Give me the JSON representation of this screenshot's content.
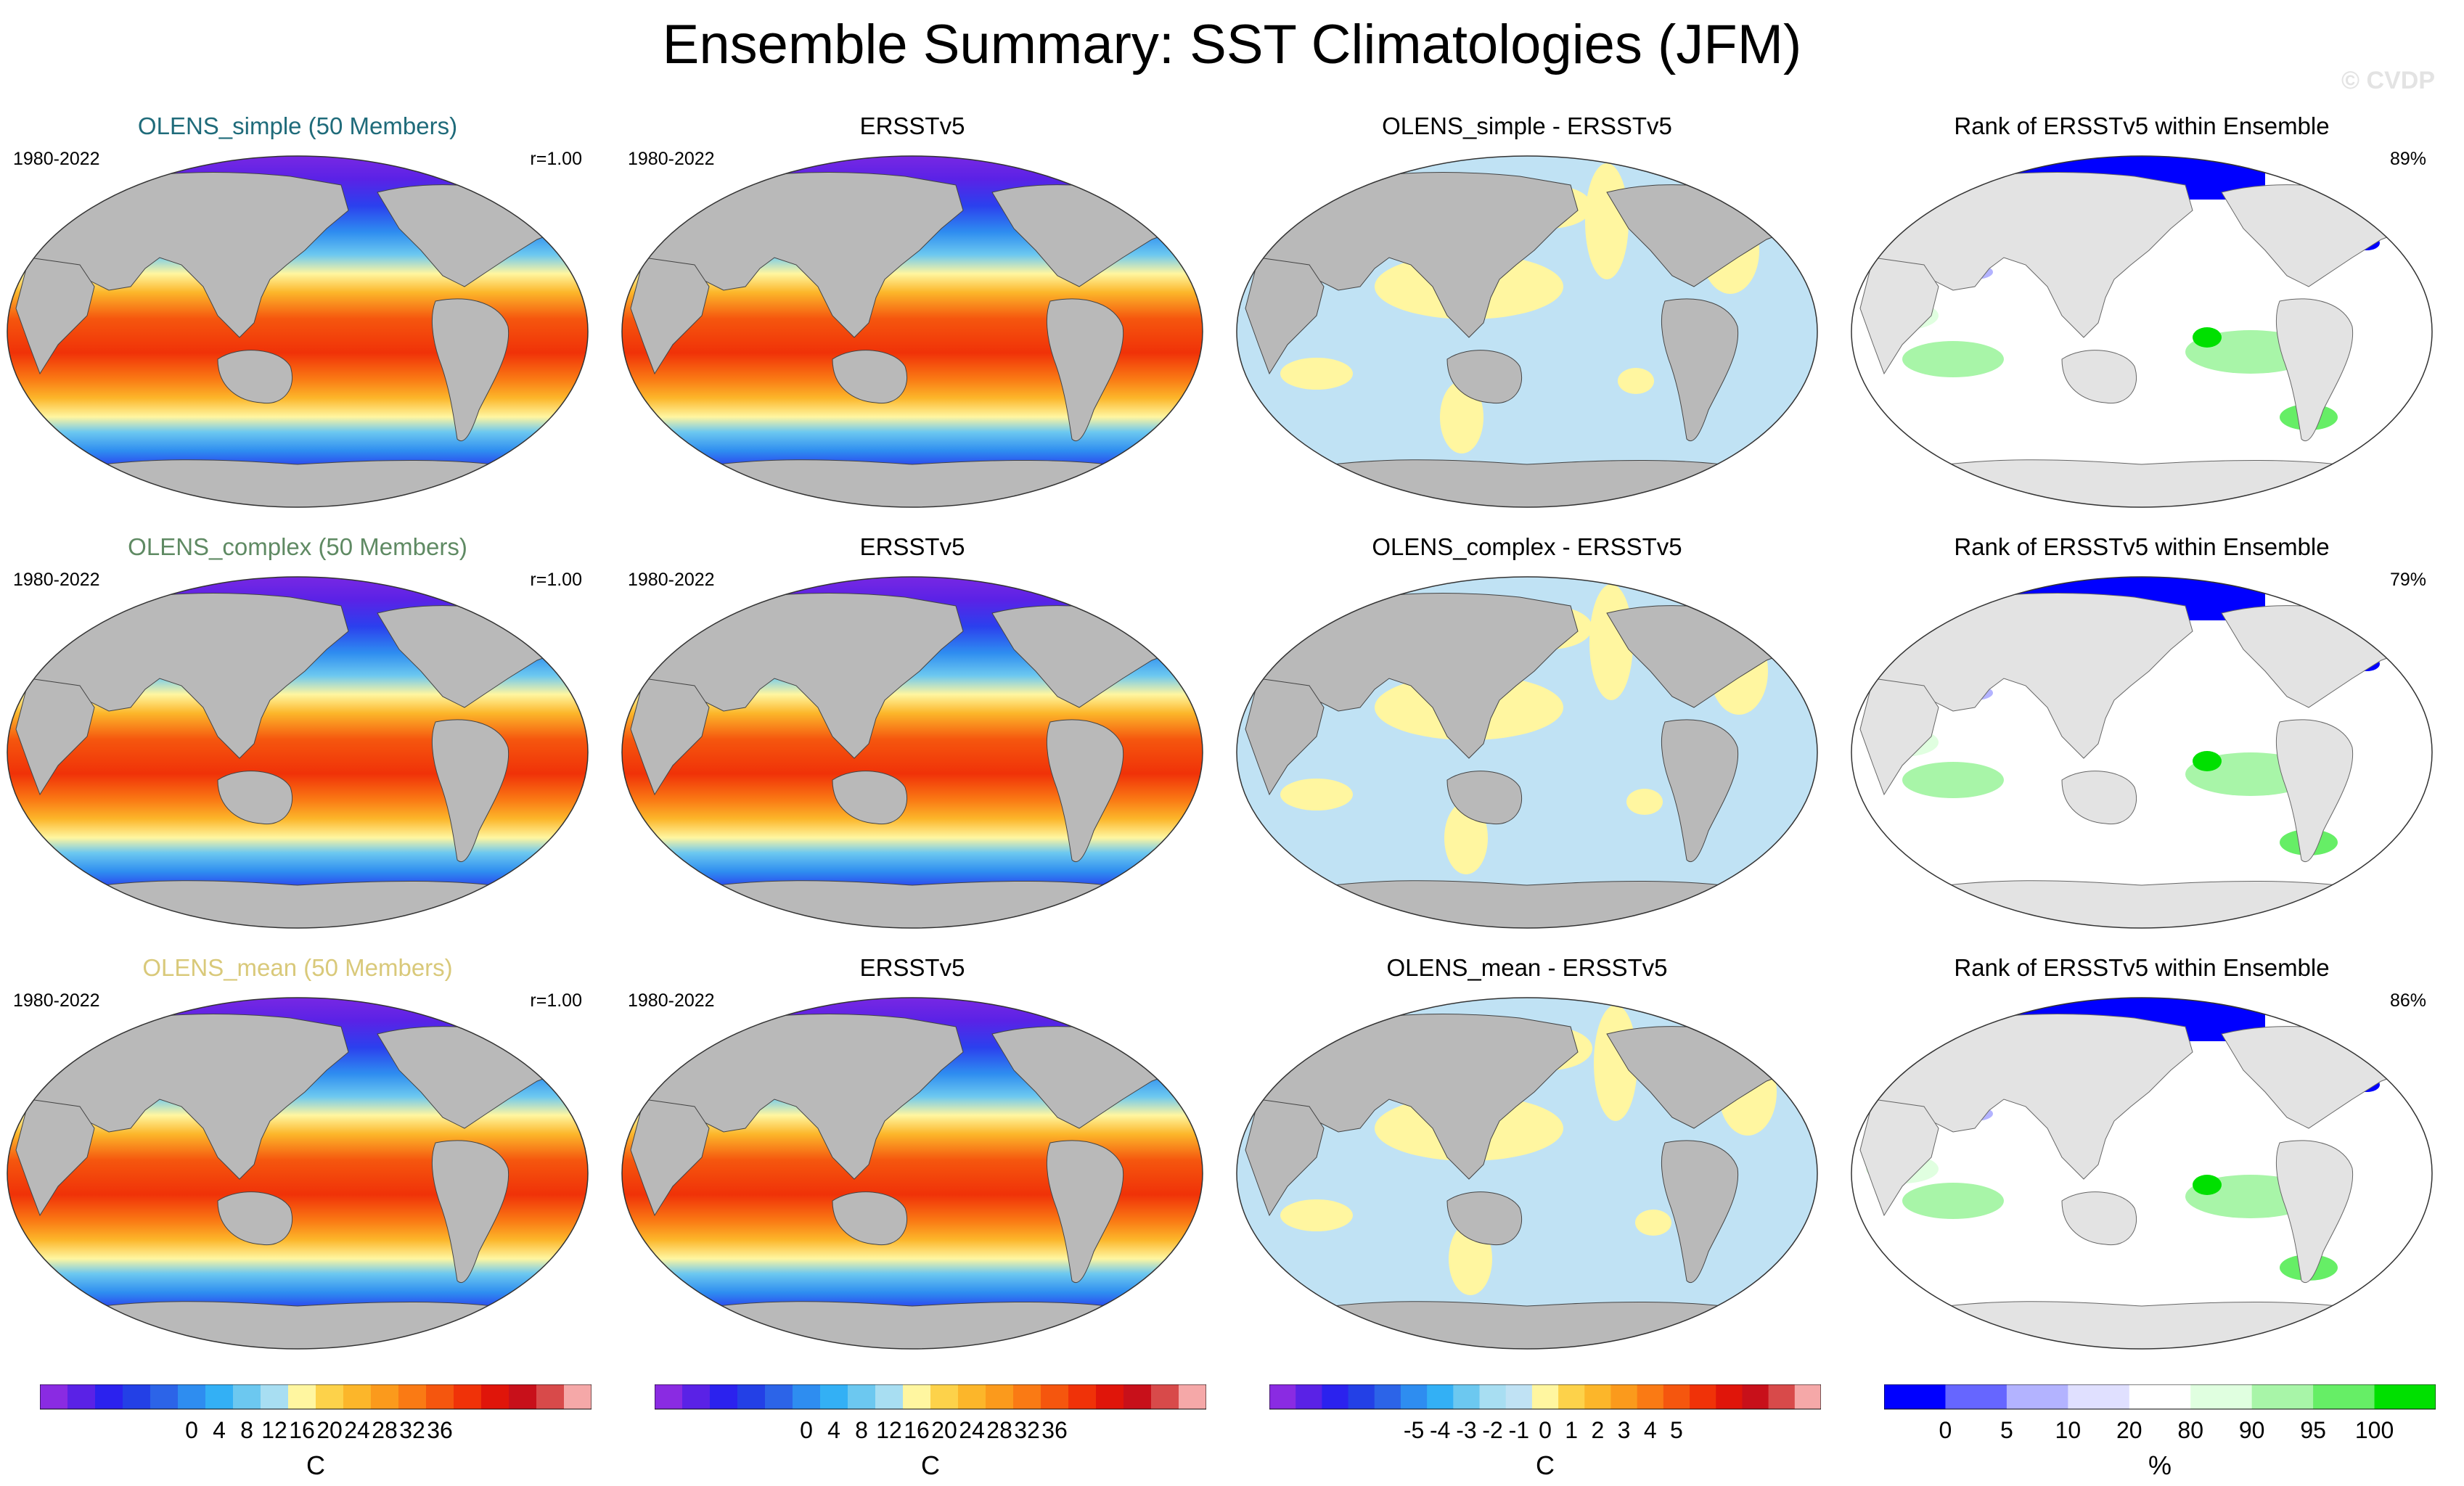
{
  "title": "Ensemble Summary: SST Climatologies (JFM)",
  "copyright": "© CVDP",
  "rows": [
    {
      "model": {
        "title": "OLENS_simple (50 Members)",
        "title_color": "#1f6b7a",
        "period": "1980-2022",
        "corr": "r=1.00"
      },
      "obs": {
        "title": "ERSSTv5",
        "period": "1980-2022"
      },
      "diff": {
        "title": "OLENS_simple - ERSSTv5"
      },
      "rank": {
        "title": "Rank of ERSSTv5 within Ensemble",
        "pct": "89%"
      }
    },
    {
      "model": {
        "title": "OLENS_complex (50 Members)",
        "title_color": "#5f8a63",
        "period": "1980-2022",
        "corr": "r=1.00"
      },
      "obs": {
        "title": "ERSSTv5",
        "period": "1980-2022"
      },
      "diff": {
        "title": "OLENS_complex - ERSSTv5"
      },
      "rank": {
        "title": "Rank of ERSSTv5 within Ensemble",
        "pct": "79%"
      }
    },
    {
      "model": {
        "title": "OLENS_mean (50 Members)",
        "title_color": "#d9c97a",
        "period": "1980-2022",
        "corr": "r=1.00"
      },
      "obs": {
        "title": "ERSSTv5",
        "period": "1980-2022"
      },
      "diff": {
        "title": "OLENS_mean - ERSSTv5"
      },
      "rank": {
        "title": "Rank of ERSSTv5 within Ensemble",
        "pct": "86%"
      }
    }
  ],
  "colorbars": [
    {
      "unit": "C",
      "labels": [
        "0",
        "4",
        "8",
        "12",
        "16",
        "20",
        "24",
        "28",
        "32",
        "36"
      ],
      "colors": [
        "#8a2be2",
        "#5a22e6",
        "#2b22ee",
        "#2340e6",
        "#2c64e8",
        "#2e8df0",
        "#33b0f5",
        "#6cc8f0",
        "#a8def2",
        "#fff6a0",
        "#fdd24a",
        "#fcb62a",
        "#fb9a1c",
        "#fa7a14",
        "#f5560e",
        "#f03208",
        "#e0150a",
        "#c8101a",
        "#d84a4a",
        "#f5a8a8"
      ]
    },
    {
      "unit": "C",
      "labels": [
        "0",
        "4",
        "8",
        "12",
        "16",
        "20",
        "24",
        "28",
        "32",
        "36"
      ],
      "colors": [
        "#8a2be2",
        "#5a22e6",
        "#2b22ee",
        "#2340e6",
        "#2c64e8",
        "#2e8df0",
        "#33b0f5",
        "#6cc8f0",
        "#a8def2",
        "#fff6a0",
        "#fdd24a",
        "#fcb62a",
        "#fb9a1c",
        "#fa7a14",
        "#f5560e",
        "#f03208",
        "#e0150a",
        "#c8101a",
        "#d84a4a",
        "#f5a8a8"
      ]
    },
    {
      "unit": "C",
      "labels": [
        "-5",
        "-4",
        "-3",
        "-2",
        "-1",
        "0",
        "1",
        "2",
        "3",
        "4",
        "5"
      ],
      "colors": [
        "#8a2be2",
        "#5a22e6",
        "#2b22ee",
        "#2340e6",
        "#2c64e8",
        "#2e8df0",
        "#33b0f5",
        "#6cc8f0",
        "#a8def2",
        "#c0e2f4",
        "#fff6a0",
        "#fdd24a",
        "#fcb62a",
        "#fb9a1c",
        "#fa7a14",
        "#f5560e",
        "#f03208",
        "#e0150a",
        "#c8101a",
        "#d84a4a",
        "#f5a8a8"
      ]
    },
    {
      "unit": "%",
      "labels": [
        "0",
        "5",
        "10",
        "20",
        "80",
        "90",
        "95",
        "100"
      ],
      "colors": [
        "#0000ff",
        "#6666ff",
        "#b3b3ff",
        "#e0e0ff",
        "#ffffff",
        "#e0ffe0",
        "#a8f5a8",
        "#66ee66",
        "#00e000"
      ]
    }
  ]
}
